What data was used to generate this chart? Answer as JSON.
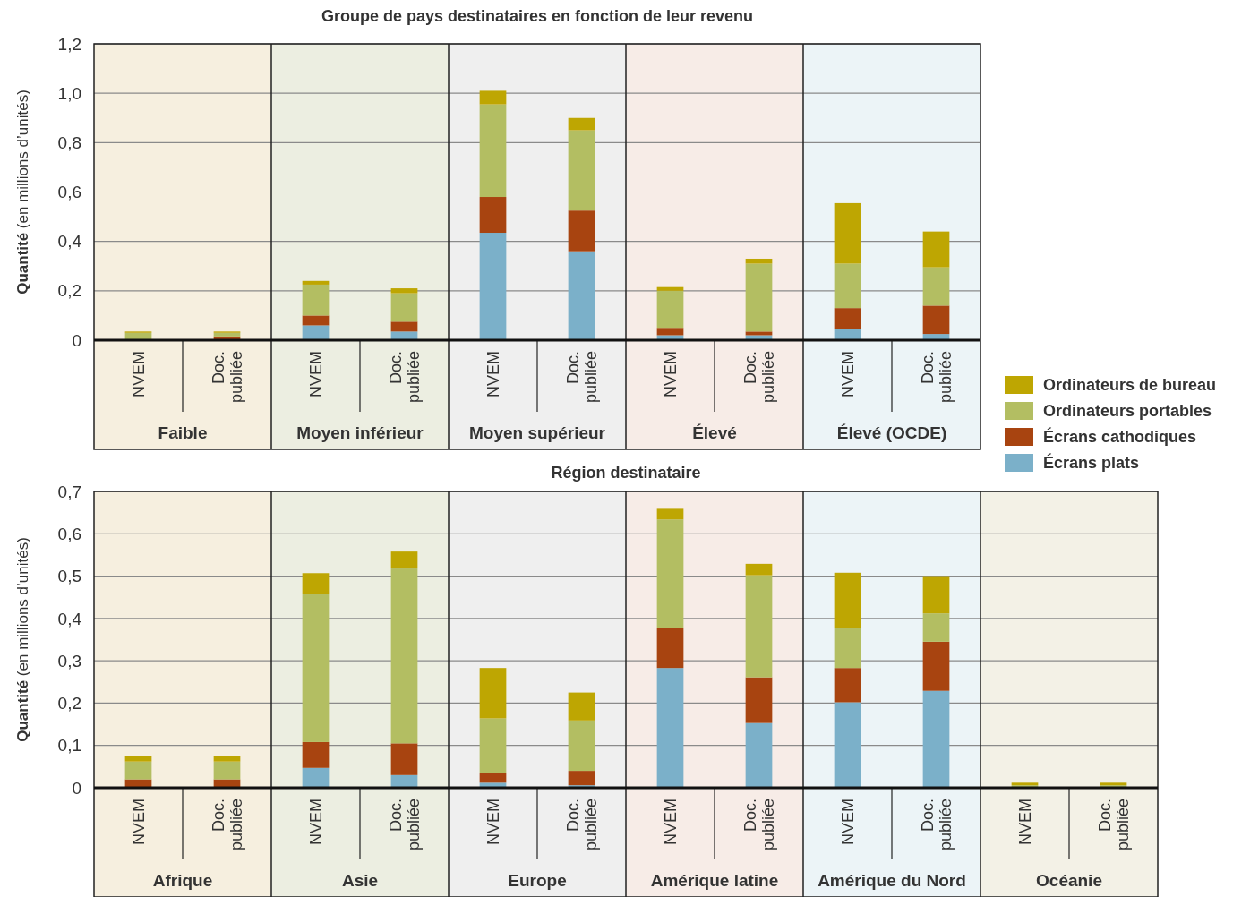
{
  "chart_data": [
    {
      "type": "bar",
      "stacked": true,
      "title": "Groupe de pays destinataires en fonction de leur revenu",
      "ylabel": "Quantité (en millions d’unités)",
      "categories": [
        "NVEM",
        "Doc. publiée",
        "NVEM",
        "Doc. publiée",
        "NVEM",
        "Doc. publiée",
        "NVEM",
        "Doc. publiée",
        "NVEM",
        "Doc. publiée"
      ],
      "annotations": [
        "Faible",
        "Moyen inférieur",
        "Moyen supérieur",
        "Élevé",
        "Élevé (OCDE)"
      ],
      "series": [
        {
          "name": "Écrans plats",
          "color": "#7bb0c9",
          "values": [
            0,
            0,
            0.06,
            0.035,
            0.435,
            0.36,
            0.02,
            0.02,
            0.045,
            0.025
          ]
        },
        {
          "name": "Écrans cathodiques",
          "color": "#a84410",
          "values": [
            0,
            0.015,
            0.04,
            0.04,
            0.145,
            0.165,
            0.03,
            0.015,
            0.085,
            0.115
          ]
        },
        {
          "name": "Ordinateurs portables",
          "color": "#b3be62",
          "values": [
            0.03,
            0.015,
            0.125,
            0.115,
            0.375,
            0.325,
            0.15,
            0.275,
            0.18,
            0.155
          ]
        },
        {
          "name": "Ordinateurs de bureau",
          "color": "#bea602",
          "values": [
            0.005,
            0.005,
            0.015,
            0.02,
            0.055,
            0.05,
            0.015,
            0.02,
            0.245,
            0.145
          ]
        }
      ],
      "ylim": [
        0,
        1.2
      ],
      "yticks": [
        0,
        {
          "value": 0.2,
          "label": "0,2"
        },
        {
          "value": 0.4,
          "label": "0,4"
        },
        {
          "value": 0.6,
          "label": "0,6"
        },
        {
          "value": 0.8,
          "label": "0,8"
        },
        {
          "value": 1.0,
          "label": "1,0"
        },
        {
          "value": 1.2,
          "label": "1,2"
        }
      ],
      "grid": "y",
      "legend": "right"
    },
    {
      "type": "bar",
      "stacked": true,
      "title": "Région destinataire",
      "ylabel": "Quantité (en millions d’unités)",
      "categories": [
        "NVEM",
        "Doc. publiée",
        "NVEM",
        "Doc. publiée",
        "NVEM",
        "Doc. publiée",
        "NVEM",
        "Doc. publiée",
        "NVEM",
        "Doc. publiée",
        "NVEM",
        "Doc. publiée"
      ],
      "annotations": [
        "Afrique",
        "Asie",
        "Europe",
        "Amérique latine",
        "Amérique du Nord",
        "Océanie"
      ],
      "series": [
        {
          "color": "#7bb0c9",
          "values": [
            0,
            0,
            0.047,
            0.03,
            0.012,
            0.006,
            0.283,
            0.153,
            0.202,
            0.229,
            0,
            0
          ]
        },
        {
          "color": "#a84410",
          "values": [
            0.02,
            0.02,
            0.061,
            0.075,
            0.022,
            0.034,
            0.095,
            0.108,
            0.081,
            0.116,
            0,
            0
          ]
        },
        {
          "color": "#b3be62",
          "values": [
            0.042,
            0.042,
            0.349,
            0.413,
            0.13,
            0.119,
            0.256,
            0.241,
            0.095,
            0.067,
            0.006,
            0.006
          ]
        },
        {
          "color": "#bea602",
          "values": [
            0.013,
            0.013,
            0.05,
            0.04,
            0.119,
            0.066,
            0.025,
            0.027,
            0.13,
            0.088,
            0.006,
            0.006
          ]
        }
      ],
      "ylim": [
        0,
        0.7
      ],
      "yticks": [
        0,
        {
          "value": 0.1,
          "label": "0,1"
        },
        {
          "value": 0.2,
          "label": "0,2"
        },
        {
          "value": 0.3,
          "label": "0,3"
        },
        {
          "value": 0.4,
          "label": "0,4"
        },
        {
          "value": 0.5,
          "label": "0,5"
        },
        {
          "value": 0.6,
          "label": "0,6"
        },
        {
          "value": 0.7,
          "label": "0,7"
        }
      ],
      "grid": "y",
      "legend": false
    }
  ]
}
